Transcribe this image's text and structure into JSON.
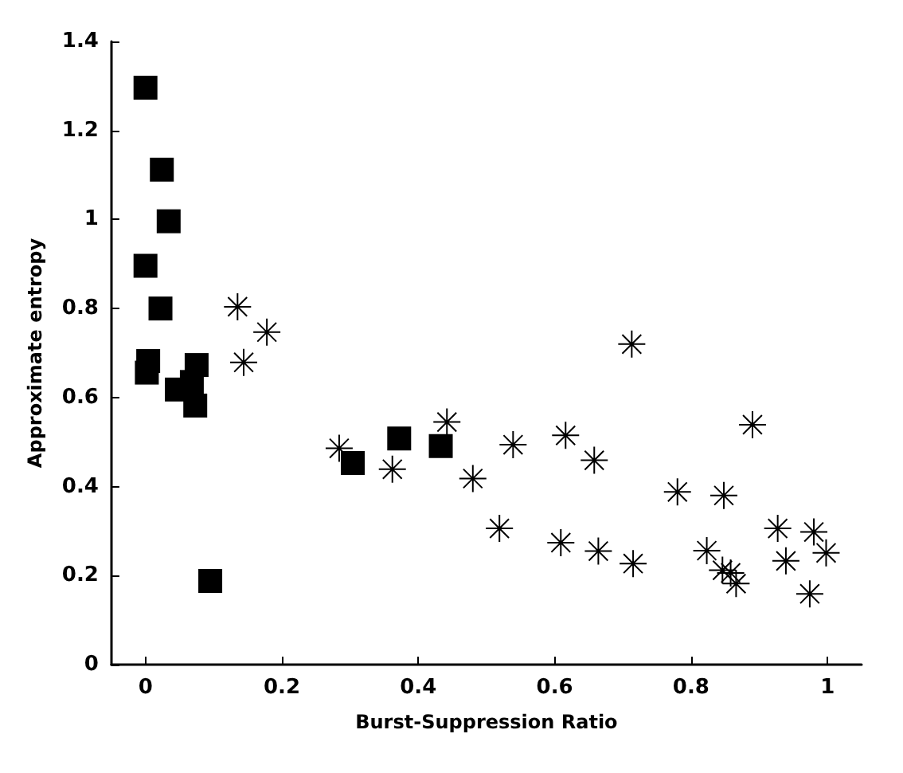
{
  "chart_data": {
    "type": "scatter",
    "xlabel": "Burst-Suppression Ratio",
    "ylabel": "Approximate entropy",
    "xlim": [
      -0.05,
      1.05
    ],
    "ylim": [
      0,
      1.4
    ],
    "xticks": [
      0,
      0.2,
      0.4,
      0.6,
      0.8,
      1
    ],
    "yticks": [
      0,
      0.2,
      0.4,
      0.6,
      0.8,
      1,
      1.2,
      1.4
    ],
    "grid": false,
    "series": [
      {
        "marker": "square",
        "color": "#000000",
        "x": [
          0,
          0.024,
          0.034,
          0,
          0.022,
          0.004,
          0.002,
          0.046,
          0.068,
          0.075,
          0.073,
          0.095,
          0.304,
          0.372,
          0.433
        ],
        "values": [
          1.296,
          1.112,
          0.996,
          0.896,
          0.8,
          0.682,
          0.656,
          0.618,
          0.635,
          0.673,
          0.582,
          0.188,
          0.453,
          0.508,
          0.491
        ]
      },
      {
        "marker": "cross",
        "color": "#000000",
        "x": [
          0.135,
          0.178,
          0.144,
          0.284,
          0.362,
          0.442,
          0.539,
          0.48,
          0.519,
          0.616,
          0.658,
          0.713,
          0.609,
          0.664,
          0.715,
          0.78,
          0.848,
          0.89,
          0.823,
          0.846,
          0.866,
          0.858,
          0.927,
          0.939,
          0.98,
          0.998,
          0.974
        ],
        "values": [
          0.804,
          0.747,
          0.679,
          0.486,
          0.439,
          0.545,
          0.494,
          0.418,
          0.306,
          0.515,
          0.459,
          0.72,
          0.274,
          0.255,
          0.227,
          0.388,
          0.38,
          0.539,
          0.256,
          0.212,
          0.182,
          0.206,
          0.306,
          0.233,
          0.298,
          0.251,
          0.159
        ]
      }
    ]
  }
}
